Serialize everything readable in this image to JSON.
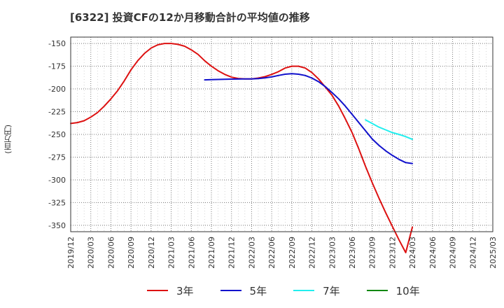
{
  "chart_data": {
    "type": "line",
    "title": "[6322]  投資CFの12か月移動合計の平均値の推移",
    "ylabel": "(百万円)",
    "xlabel": "",
    "ylim": [
      -357,
      -143
    ],
    "yticks": [
      -150,
      -175,
      -200,
      -225,
      -250,
      -275,
      -300,
      -325,
      -350
    ],
    "ytick_labels": [
      "-150",
      "-175",
      "-200",
      "-225",
      "-250",
      "-275",
      "-300",
      "-325",
      "-350"
    ],
    "xticks": [
      "2019/12",
      "2020/03",
      "2020/06",
      "2020/09",
      "2020/12",
      "2021/03",
      "2021/06",
      "2021/09",
      "2021/12",
      "2022/03",
      "2022/06",
      "2022/09",
      "2022/12",
      "2023/03",
      "2023/06",
      "2023/09",
      "2023/12",
      "2024/03",
      "2024/06",
      "2024/09",
      "2024/12",
      "2025/03"
    ],
    "grid": true,
    "legend_position": "bottom",
    "colors": {
      "3年": "#dd1111",
      "5年": "#1111cc",
      "7年": "#22eeee",
      "10年": "#118811"
    },
    "series": [
      {
        "name": "3年",
        "x": [
          "2019/12",
          "2020/01",
          "2020/02",
          "2020/03",
          "2020/04",
          "2020/05",
          "2020/06",
          "2020/07",
          "2020/08",
          "2020/09",
          "2020/10",
          "2020/11",
          "2020/12",
          "2021/01",
          "2021/02",
          "2021/03",
          "2021/04",
          "2021/05",
          "2021/06",
          "2021/07",
          "2021/08",
          "2021/09",
          "2021/10",
          "2021/11",
          "2021/12",
          "2022/01",
          "2022/02",
          "2022/03",
          "2022/04",
          "2022/05",
          "2022/06",
          "2022/07",
          "2022/08",
          "2022/09",
          "2022/10",
          "2022/11",
          "2022/12",
          "2023/01",
          "2023/02",
          "2023/03",
          "2023/04",
          "2023/05",
          "2023/06",
          "2023/07",
          "2023/08",
          "2023/09",
          "2023/10",
          "2023/11",
          "2023/12",
          "2024/01",
          "2024/02",
          "2024/03"
        ],
        "values": [
          -238,
          -237,
          -235,
          -231,
          -226,
          -219,
          -211,
          -202,
          -191,
          -179,
          -169,
          -161,
          -155,
          -151.5,
          -150,
          -150,
          -151,
          -153,
          -157,
          -162,
          -169,
          -175,
          -180,
          -184,
          -187,
          -188.5,
          -189,
          -189,
          -188,
          -186.5,
          -184,
          -181,
          -177,
          -175,
          -175,
          -177,
          -182,
          -189,
          -198,
          -207,
          -219,
          -233,
          -248,
          -266,
          -285,
          -303,
          -320,
          -336,
          -351,
          -366,
          -380,
          -352
        ]
      },
      {
        "name": "5年",
        "x": [
          "2021/08",
          "2021/09",
          "2021/10",
          "2021/11",
          "2021/12",
          "2022/01",
          "2022/02",
          "2022/03",
          "2022/04",
          "2022/05",
          "2022/06",
          "2022/07",
          "2022/08",
          "2022/09",
          "2022/10",
          "2022/11",
          "2022/12",
          "2023/01",
          "2023/02",
          "2023/03",
          "2023/04",
          "2023/05",
          "2023/06",
          "2023/07",
          "2023/08",
          "2023/09",
          "2023/10",
          "2023/11",
          "2023/12",
          "2024/01",
          "2024/02",
          "2024/03"
        ],
        "values": [
          -190,
          -189.8,
          -189.6,
          -189.4,
          -189.2,
          -189.1,
          -189,
          -189,
          -188.6,
          -187.8,
          -186.8,
          -185.2,
          -183.8,
          -183.2,
          -183.8,
          -185.2,
          -188,
          -192,
          -197.5,
          -204,
          -211,
          -219,
          -228,
          -237,
          -246,
          -255,
          -262,
          -268,
          -273,
          -277.5,
          -281,
          -282
        ]
      },
      {
        "name": "7年",
        "x": [
          "2023/08",
          "2023/09",
          "2023/10",
          "2023/11",
          "2023/12",
          "2024/01",
          "2024/02",
          "2024/03"
        ],
        "values": [
          -234,
          -238,
          -242,
          -245,
          -248,
          -250,
          -252.5,
          -255.5
        ]
      },
      {
        "name": "10年",
        "x": [],
        "values": []
      }
    ]
  }
}
